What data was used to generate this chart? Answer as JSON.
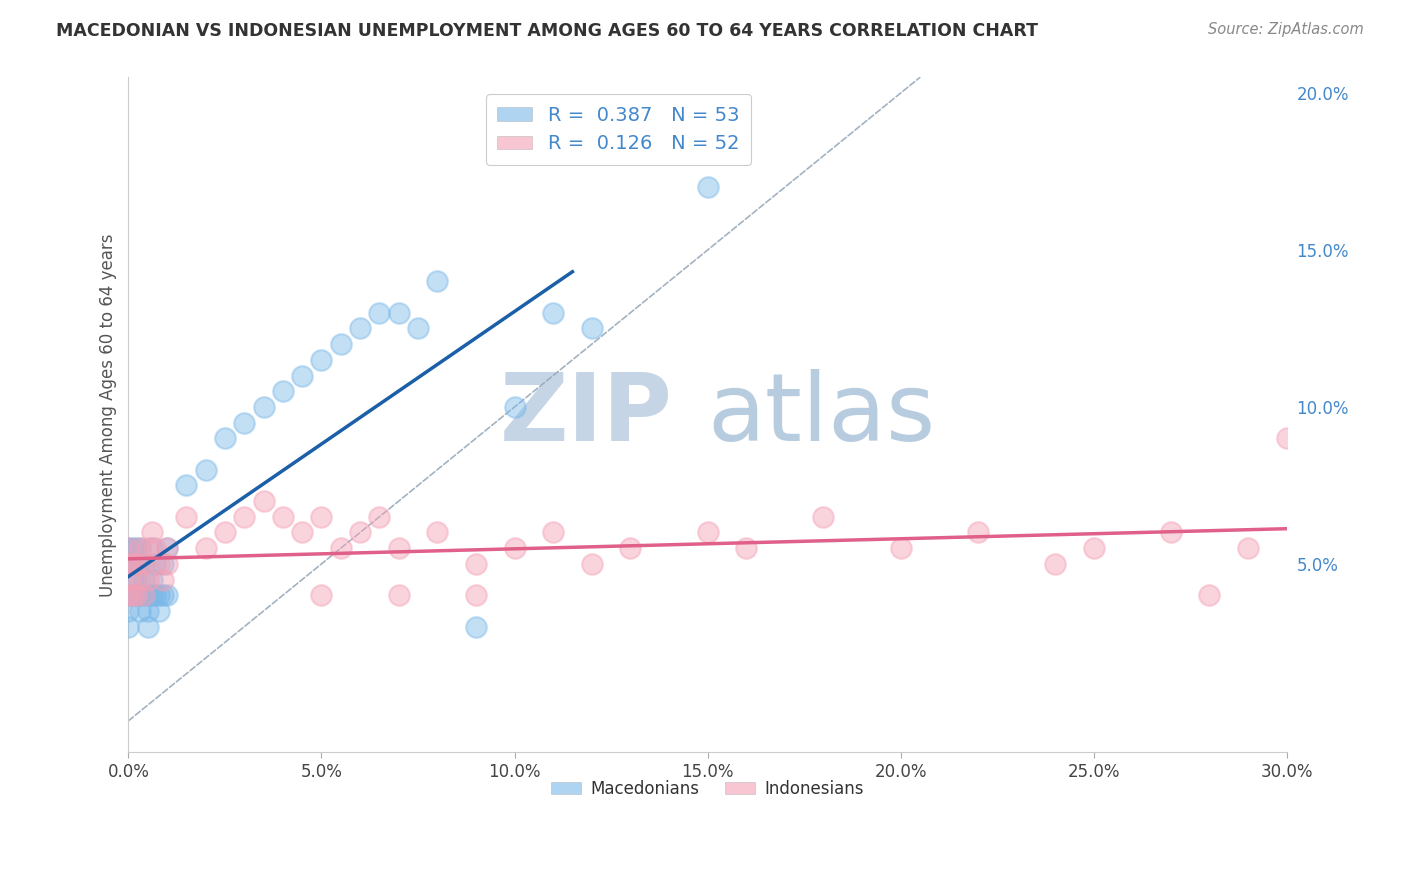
{
  "title": "MACEDONIAN VS INDONESIAN UNEMPLOYMENT AMONG AGES 60 TO 64 YEARS CORRELATION CHART",
  "source": "Source: ZipAtlas.com",
  "ylabel": "Unemployment Among Ages 60 to 64 years",
  "xlim": [
    0.0,
    0.3
  ],
  "ylim": [
    -0.01,
    0.205
  ],
  "macedonian_color": "#7ab8e8",
  "indonesian_color": "#f4a0b5",
  "macedonian_line_color": "#1a5fa8",
  "indonesian_line_color": "#e0608a",
  "macedonian_R": 0.387,
  "macedonian_N": 53,
  "indonesian_R": 0.126,
  "indonesian_N": 52,
  "background_color": "#ffffff",
  "grid_color": "#cccccc",
  "title_color": "#333333",
  "axis_label_color": "#555555",
  "tick_label_color_right": "#4488cc",
  "diagonal_line_color": "#99aabb",
  "watermark_zip_color": "#c8d8e8",
  "watermark_atlas_color": "#b0c4d8",
  "mac_x": [
    0.0,
    0.0,
    0.0,
    0.0,
    0.0,
    0.001,
    0.001,
    0.001,
    0.001,
    0.002,
    0.002,
    0.002,
    0.002,
    0.003,
    0.003,
    0.003,
    0.003,
    0.004,
    0.004,
    0.004,
    0.005,
    0.005,
    0.005,
    0.006,
    0.006,
    0.006,
    0.007,
    0.007,
    0.008,
    0.008,
    0.009,
    0.009,
    0.01,
    0.01,
    0.015,
    0.02,
    0.025,
    0.03,
    0.035,
    0.04,
    0.045,
    0.05,
    0.055,
    0.06,
    0.065,
    0.07,
    0.075,
    0.08,
    0.09,
    0.1,
    0.11,
    0.12,
    0.15
  ],
  "mac_y": [
    0.04,
    0.05,
    0.055,
    0.03,
    0.035,
    0.04,
    0.045,
    0.05,
    0.055,
    0.04,
    0.045,
    0.05,
    0.055,
    0.035,
    0.04,
    0.05,
    0.055,
    0.04,
    0.045,
    0.05,
    0.03,
    0.035,
    0.04,
    0.04,
    0.045,
    0.055,
    0.04,
    0.05,
    0.035,
    0.04,
    0.04,
    0.05,
    0.04,
    0.055,
    0.075,
    0.08,
    0.09,
    0.095,
    0.1,
    0.105,
    0.11,
    0.115,
    0.12,
    0.125,
    0.13,
    0.13,
    0.125,
    0.14,
    0.03,
    0.1,
    0.13,
    0.125,
    0.17
  ],
  "indo_x": [
    0.0,
    0.0,
    0.0,
    0.0,
    0.001,
    0.001,
    0.002,
    0.002,
    0.003,
    0.003,
    0.004,
    0.004,
    0.005,
    0.005,
    0.006,
    0.007,
    0.008,
    0.009,
    0.01,
    0.01,
    0.015,
    0.02,
    0.025,
    0.03,
    0.035,
    0.04,
    0.045,
    0.05,
    0.055,
    0.06,
    0.065,
    0.07,
    0.08,
    0.09,
    0.1,
    0.11,
    0.12,
    0.13,
    0.15,
    0.16,
    0.18,
    0.2,
    0.22,
    0.24,
    0.25,
    0.27,
    0.29,
    0.3,
    0.05,
    0.07,
    0.09,
    0.28
  ],
  "indo_y": [
    0.04,
    0.05,
    0.055,
    0.045,
    0.04,
    0.05,
    0.04,
    0.05,
    0.045,
    0.055,
    0.04,
    0.05,
    0.045,
    0.055,
    0.06,
    0.055,
    0.05,
    0.045,
    0.05,
    0.055,
    0.065,
    0.055,
    0.06,
    0.065,
    0.07,
    0.065,
    0.06,
    0.065,
    0.055,
    0.06,
    0.065,
    0.055,
    0.06,
    0.05,
    0.055,
    0.06,
    0.05,
    0.055,
    0.06,
    0.055,
    0.065,
    0.055,
    0.06,
    0.05,
    0.055,
    0.06,
    0.055,
    0.09,
    0.04,
    0.04,
    0.04,
    0.04
  ]
}
